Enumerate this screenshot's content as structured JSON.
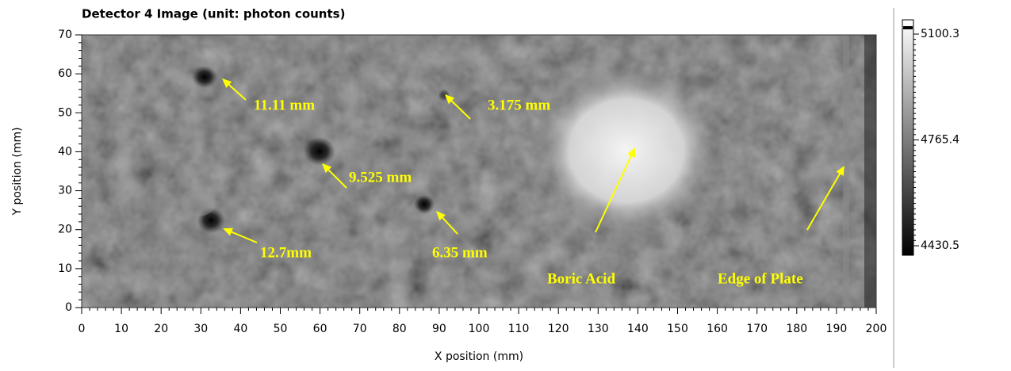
{
  "chart_data": {
    "type": "heatmap",
    "title": "Detector 4 Image (unit: photon counts)",
    "xlabel": "X position (mm)",
    "ylabel": "Y position (mm)",
    "xlim": [
      0,
      200
    ],
    "xticks": [
      0,
      10,
      20,
      30,
      40,
      50,
      60,
      70,
      80,
      90,
      100,
      110,
      120,
      130,
      140,
      150,
      160,
      170,
      180,
      190,
      200
    ],
    "ylim": [
      0,
      70
    ],
    "yticks": [
      0,
      10,
      20,
      30,
      40,
      50,
      60,
      70
    ],
    "colorbar": {
      "lim": [
        4430.5,
        5100.3
      ],
      "ticks": [
        4430.5,
        4765.4,
        5100.3
      ]
    },
    "annotations": [
      "11.11 mm",
      "3.175 mm",
      "9.525 mm",
      "6.35 mm",
      "12.7mm",
      "Boric Acid",
      "Edge of Plate"
    ],
    "annotation_color": "#ffff00"
  }
}
